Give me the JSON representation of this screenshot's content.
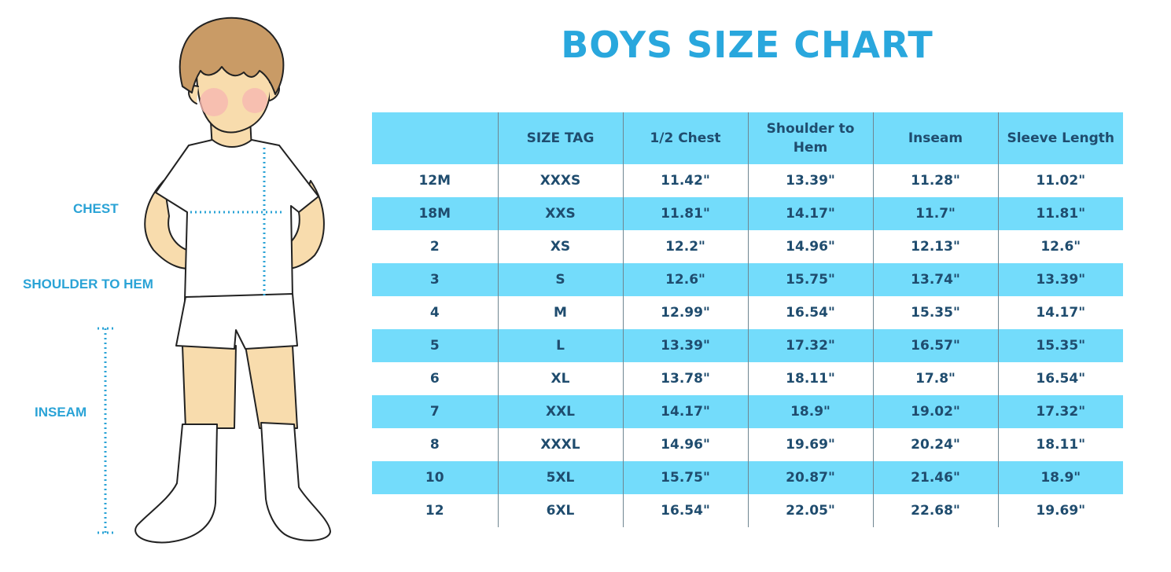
{
  "title": "BOYS SIZE CHART",
  "figure_labels": {
    "chest": "CHEST",
    "shoulder_to_hem": "SHOULDER TO HEM",
    "inseam": "INSEAM"
  },
  "colors": {
    "accent": "#29a7dd",
    "header_band": "#73dcfb",
    "cell_text": "#1f4c6e"
  },
  "table": {
    "headers": [
      "",
      "SIZE TAG",
      "1/2 Chest",
      "Shoulder to Hem",
      "Inseam",
      "Sleeve Length"
    ],
    "rows": [
      [
        "12M",
        "XXXS",
        "11.42\"",
        "13.39\"",
        "11.28\"",
        "11.02\""
      ],
      [
        "18M",
        "XXS",
        "11.81\"",
        "14.17\"",
        "11.7\"",
        "11.81\""
      ],
      [
        "2",
        "XS",
        "12.2\"",
        "14.96\"",
        "12.13\"",
        "12.6\""
      ],
      [
        "3",
        "S",
        "12.6\"",
        "15.75\"",
        "13.74\"",
        "13.39\""
      ],
      [
        "4",
        "M",
        "12.99\"",
        "16.54\"",
        "15.35\"",
        "14.17\""
      ],
      [
        "5",
        "L",
        "13.39\"",
        "17.32\"",
        "16.57\"",
        "15.35\""
      ],
      [
        "6",
        "XL",
        "13.78\"",
        "18.11\"",
        "17.8\"",
        "16.54\""
      ],
      [
        "7",
        "XXL",
        "14.17\"",
        "18.9\"",
        "19.02\"",
        "17.32\""
      ],
      [
        "8",
        "XXXL",
        "14.96\"",
        "19.69\"",
        "20.24\"",
        "18.11\""
      ],
      [
        "10",
        "5XL",
        "15.75\"",
        "20.87\"",
        "21.46\"",
        "18.9\""
      ],
      [
        "12",
        "6XL",
        "16.54\"",
        "22.05\"",
        "22.68\"",
        "19.69\""
      ]
    ]
  }
}
